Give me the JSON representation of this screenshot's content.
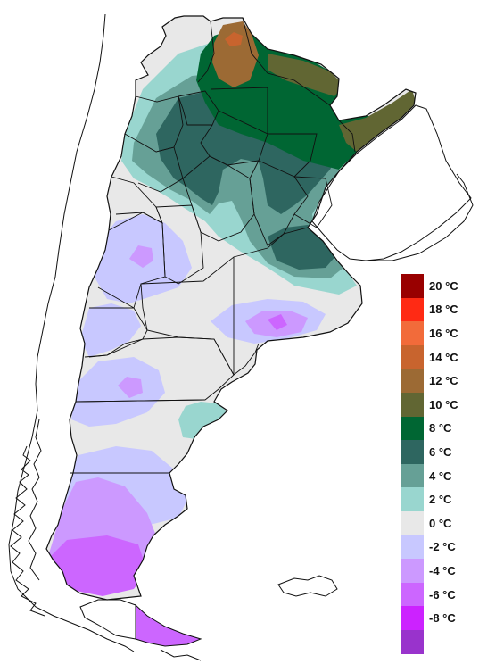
{
  "legend": {
    "items": [
      {
        "label": "20 °C",
        "color": "#990000"
      },
      {
        "label": "18 °C",
        "color": "#ff2a14"
      },
      {
        "label": "16 °C",
        "color": "#f26b3a"
      },
      {
        "label": "14 °C",
        "color": "#c8642e"
      },
      {
        "label": "12 °C",
        "color": "#9c6a34"
      },
      {
        "label": "10 °C",
        "color": "#616633"
      },
      {
        "label": "8 °C",
        "color": "#006633"
      },
      {
        "label": "6 °C",
        "color": "#2e6660"
      },
      {
        "label": "4 °C",
        "color": "#66a096"
      },
      {
        "label": "2 °C",
        "color": "#99d6cf"
      },
      {
        "label": "0 °C",
        "color": "#e8e8e8"
      },
      {
        "label": "-2 °C",
        "color": "#c8c8ff"
      },
      {
        "label": "-4 °C",
        "color": "#cc99ff"
      },
      {
        "label": "-6 °C",
        "color": "#cc66ff"
      },
      {
        "label": "-8 °C",
        "color": "#cc22ff"
      },
      {
        "label": "",
        "color": "#9933cc"
      }
    ]
  },
  "colors": {
    "background": "#ffffff",
    "outline": "#111111"
  }
}
